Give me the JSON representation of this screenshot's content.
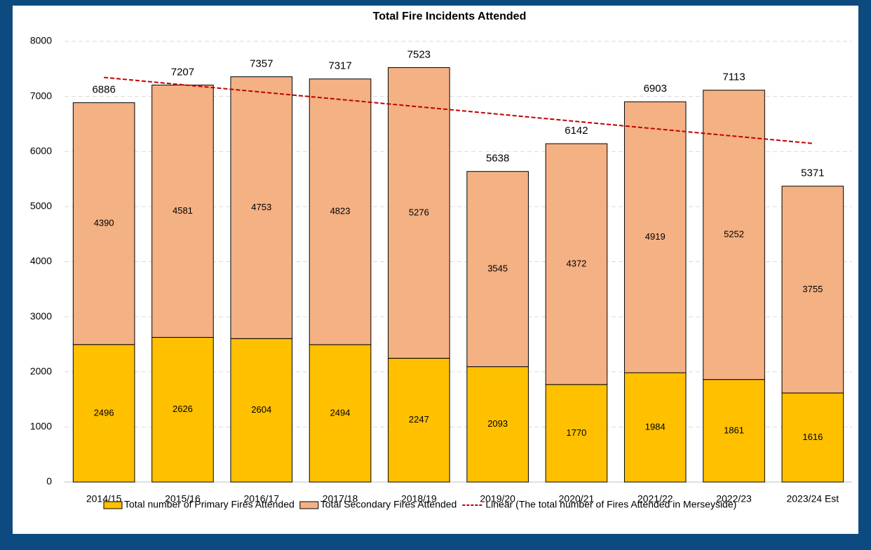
{
  "chart_data": {
    "type": "bar",
    "stacked": true,
    "title": "Total Fire Incidents Attended",
    "categories": [
      "2014/15",
      "2015/16",
      "2016/17",
      "2017/18",
      "2018/19",
      "2019/20",
      "2020/21",
      "2021/22",
      "2022/23",
      "2023/24 Est"
    ],
    "series": [
      {
        "name": "Total number of Primary Fires Attended",
        "color": "#ffc000",
        "values": [
          2496,
          2626,
          2604,
          2494,
          2247,
          2093,
          1770,
          1984,
          1861,
          1616
        ]
      },
      {
        "name": "Total Secondary Fires Attended",
        "color": "#f4b183",
        "values": [
          4390,
          4581,
          4753,
          4823,
          5276,
          3545,
          4372,
          4919,
          5252,
          3755
        ]
      }
    ],
    "totals": {
      "name": "The total number of Fires Attended in Merseyside",
      "values": [
        6886,
        7207,
        7357,
        7317,
        7523,
        5638,
        6142,
        6903,
        7113,
        5371
      ]
    },
    "trendline": {
      "name": "Linear (The total number of Fires Attended in Merseyside)",
      "color": "#c00000"
    },
    "ylim": [
      0,
      8000
    ],
    "yticks": [
      0,
      1000,
      2000,
      3000,
      4000,
      5000,
      6000,
      7000,
      8000
    ],
    "grid": true
  }
}
